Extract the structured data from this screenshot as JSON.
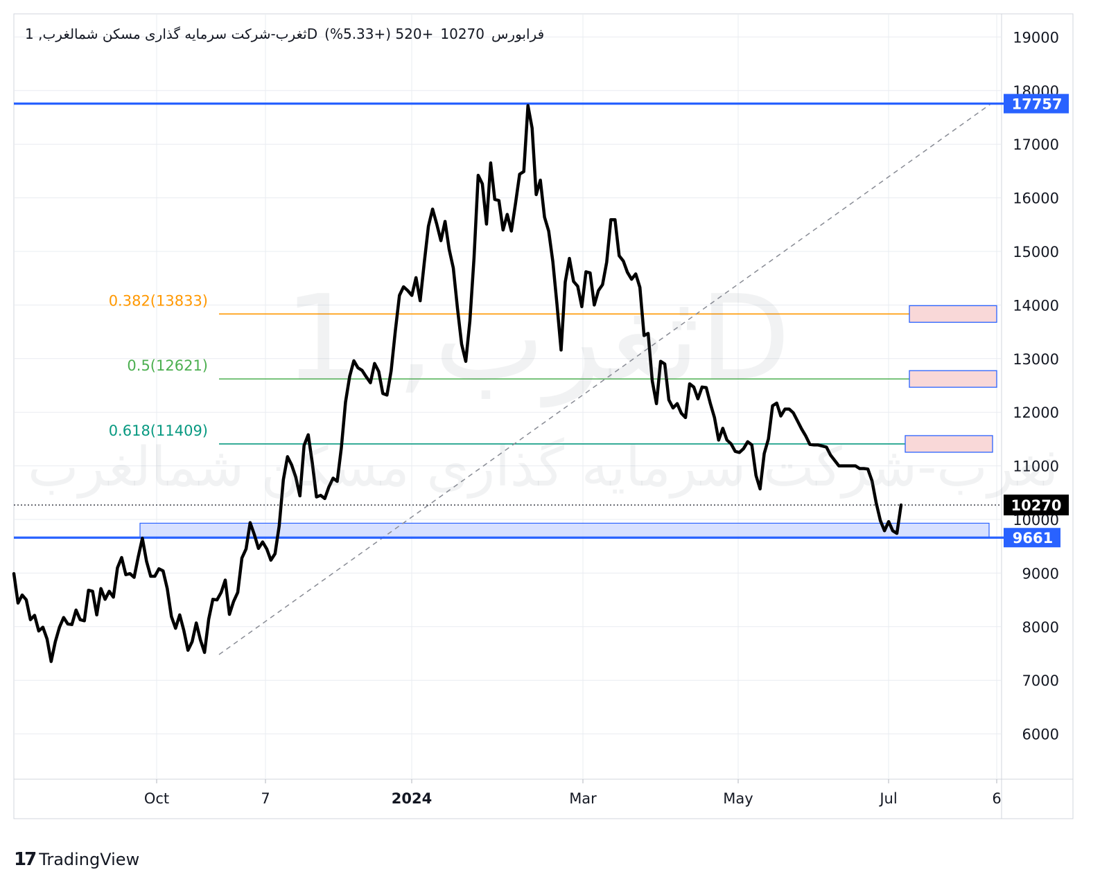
{
  "header": {
    "symbol": "ثغرب-شرکت سرمایه گذاری مسکن شمالغرب, 1D",
    "exchange": "فرابورس",
    "last": "10270",
    "change": "+520 (+5.33%)"
  },
  "watermark": {
    "big": "ثغرب, 1D",
    "small": "ثغرب-شرکت سرمایه گذاری مسکن شمالغرب"
  },
  "brand": {
    "logo_mark": "17",
    "name": "TradingView"
  },
  "colors": {
    "price_line": "#000000",
    "blue_line": "#2962ff",
    "fib_0382": "#ff9800",
    "fib_05": "#4caf50",
    "fib_0618": "#089981",
    "zone_fill": "#d1dcff",
    "target_fill": "#f9d8d8",
    "grid": "#e9ecf1"
  },
  "chart_data": {
    "type": "line",
    "y_axis": {
      "ticks": [
        6000,
        7000,
        8000,
        9000,
        10000,
        11000,
        12000,
        13000,
        14000,
        15000,
        16000,
        17000,
        18000,
        19000
      ],
      "ylim": [
        5300,
        19500
      ]
    },
    "x_axis": {
      "ticks": [
        "Oct",
        "7",
        "2024",
        "Mar",
        "May",
        "Jul",
        "6"
      ]
    },
    "series": [
      {
        "values": [
          8990,
          8440,
          8590,
          8500,
          8130,
          8210,
          7920,
          7990,
          7770,
          7350,
          7720,
          7990,
          8170,
          8050,
          8040,
          8310,
          8130,
          8110,
          8680,
          8660,
          8220,
          8710,
          8510,
          8660,
          8550,
          9100,
          9290,
          8970,
          8990,
          8920,
          9300,
          9650,
          9220,
          8940,
          8940,
          9080,
          9040,
          8710,
          8190,
          7970,
          8220,
          7930,
          7560,
          7720,
          8070,
          7750,
          7520,
          8140,
          8510,
          8500,
          8640,
          8870,
          8230,
          8470,
          8640,
          9280,
          9450,
          9940,
          9720,
          9460,
          9580,
          9450,
          9240,
          9360,
          9880,
          10740,
          11170,
          11020,
          10790,
          10440,
          11380,
          11580,
          11040,
          10420,
          10450,
          10390,
          10610,
          10770,
          10710,
          11340,
          12190,
          12670,
          12960,
          12830,
          12780,
          12660,
          12550,
          12910,
          12760,
          12350,
          12320,
          12770,
          13510,
          14180,
          14340,
          14270,
          14180,
          14510,
          14080,
          14790,
          15470,
          15790,
          15510,
          15200,
          15560,
          15040,
          14690,
          13940,
          13270,
          12950,
          13700,
          14880,
          16420,
          16260,
          15510,
          16650,
          15970,
          15950,
          15400,
          15690,
          15380,
          15890,
          16440,
          16490,
          17720,
          17300,
          16060,
          16330,
          15640,
          15380,
          14810,
          14010,
          13160,
          14430,
          14870,
          14440,
          14350,
          13970,
          14620,
          14600,
          14000,
          14270,
          14380,
          14800,
          15590,
          15590,
          14920,
          14820,
          14610,
          14480,
          14580,
          14330,
          13430,
          13470,
          12580,
          12160,
          12950,
          12900,
          12230,
          12080,
          12160,
          11980,
          11900,
          12530,
          12470,
          12250,
          12470,
          12460,
          12160,
          11900,
          11480,
          11700,
          11480,
          11410,
          11270,
          11250,
          11320,
          11450,
          11390,
          10820,
          10570,
          11230,
          11500,
          12120,
          12170,
          11930,
          12060,
          12060,
          11990,
          11840,
          11690,
          11560,
          11400,
          11390,
          11390,
          11370,
          11350,
          11200,
          11100,
          11000,
          11000,
          11000,
          11000,
          11000,
          10950,
          10950,
          10940,
          10720,
          10310,
          9980,
          9790,
          9960,
          9790,
          9740,
          10270
        ]
      }
    ],
    "horizontal_levels": [
      {
        "label": "17757",
        "value": 17757
      },
      {
        "label": "9661",
        "value": 9661
      }
    ],
    "last_price": {
      "label": "10270",
      "value": 10270
    },
    "fib_levels": [
      {
        "label": "0.382(13833)",
        "value": 13833
      },
      {
        "label": "0.5(12621)",
        "value": 12621
      },
      {
        "label": "0.618(11409)",
        "value": 11409
      }
    ],
    "support_zone": [
      9661,
      9930
    ],
    "target_boxes": [
      {
        "value": 13833
      },
      {
        "value": 12621
      },
      {
        "value": 11409
      }
    ],
    "trend_line": {
      "from": {
        "x": "Nov 2023",
        "y": 7480
      },
      "to": {
        "x": "Jul 2024",
        "y": 17757
      }
    },
    "grid": true
  }
}
